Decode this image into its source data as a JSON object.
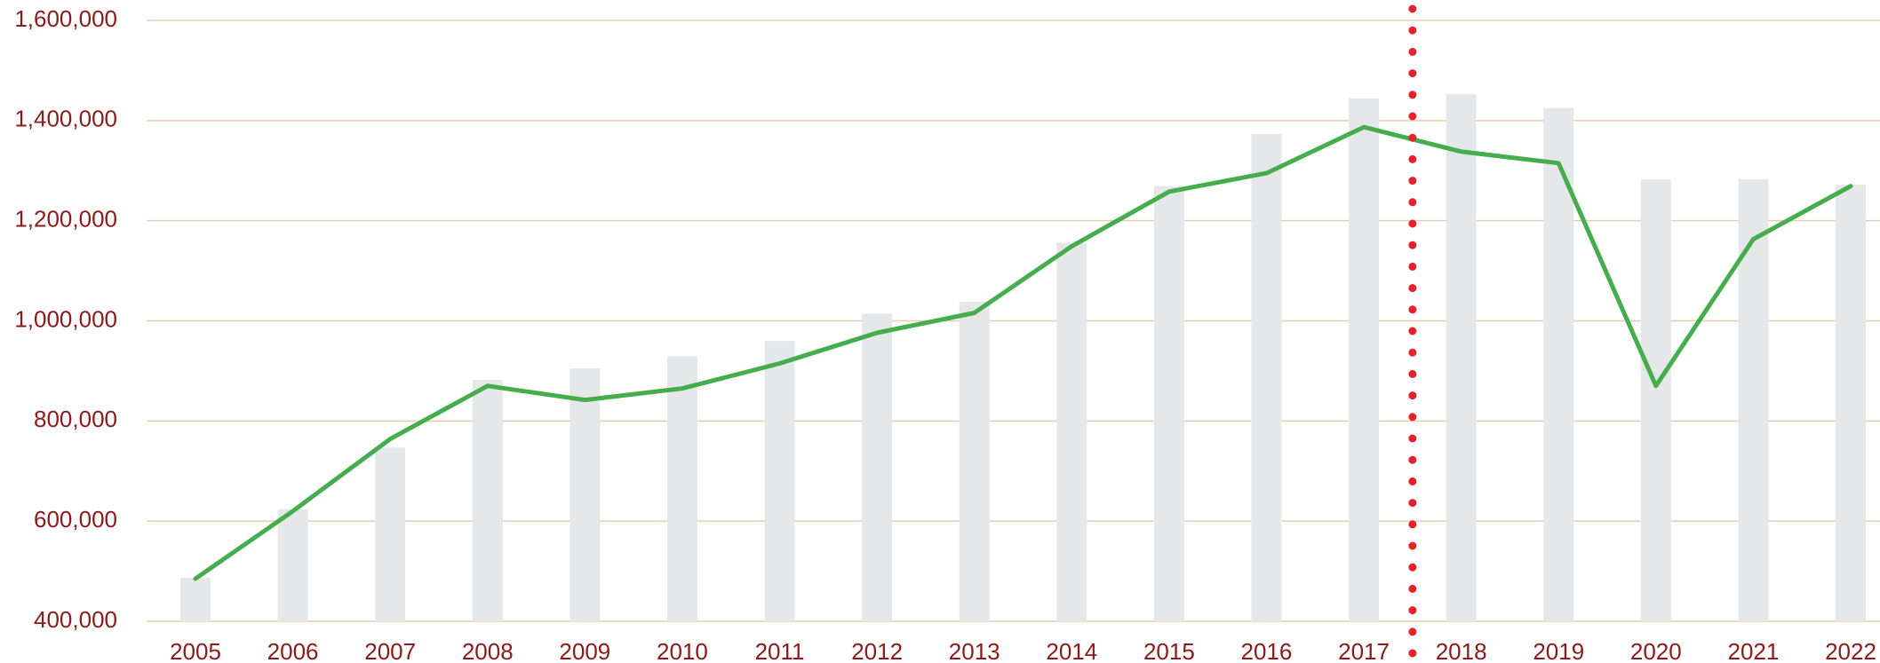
{
  "chart_data": {
    "type": "bar-line",
    "categories": [
      "2005",
      "2006",
      "2007",
      "2008",
      "2009",
      "2010",
      "2011",
      "2012",
      "2013",
      "2014",
      "2015",
      "2016",
      "2017",
      "2018",
      "2019",
      "2020",
      "2021",
      "2022"
    ],
    "series": [
      {
        "type": "bar",
        "color": "#e6e7e8",
        "values": [
          487000,
          624000,
          747000,
          882000,
          905000,
          929000,
          960000,
          1014000,
          1038000,
          1156000,
          1269000,
          1373000,
          1444000,
          1453000,
          1425000,
          1283000,
          1283000,
          1272000
        ]
      },
      {
        "type": "line",
        "color": "#46ad4e",
        "values": [
          485000,
          620000,
          764000,
          870000,
          842000,
          865000,
          915000,
          976000,
          1016000,
          1149000,
          1258000,
          1295000,
          1387000,
          1338000,
          1315000,
          870000,
          1163000,
          1269000
        ]
      }
    ],
    "ylim": [
      400000,
      1600000
    ],
    "yticks": [
      {
        "value": 400000,
        "label": "400,000"
      },
      {
        "value": 600000,
        "label": "600,000"
      },
      {
        "value": 800000,
        "label": "800,000"
      },
      {
        "value": 1000000,
        "label": "1,000,000"
      },
      {
        "value": 1200000,
        "label": "1,200,000"
      },
      {
        "value": 1400000,
        "label": "1,400,000"
      },
      {
        "value": 1600000,
        "label": "1,600,000"
      }
    ],
    "grid": true,
    "marker_line_color": "#e8202a"
  }
}
